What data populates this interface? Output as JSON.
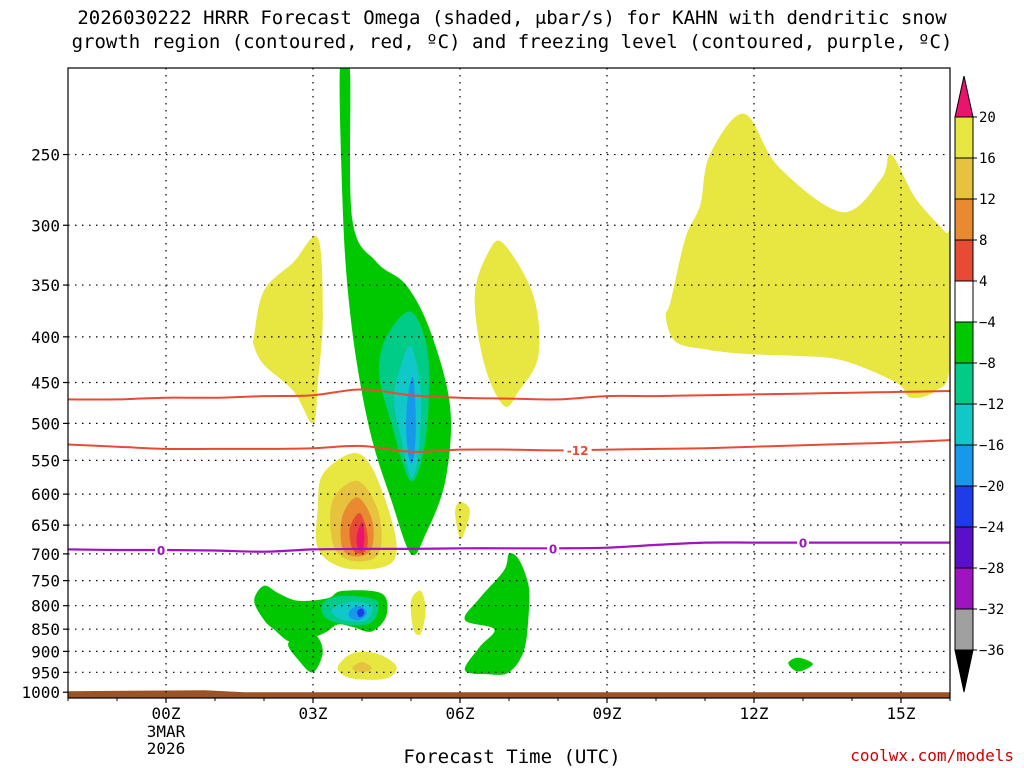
{
  "title": {
    "line1": "2026030222 HRRR Forecast Omega (shaded, μbar/s) for KAHN with dendritic snow",
    "line2": "growth region (contoured, red, ºC) and freezing level (contoured, purple, ºC)"
  },
  "xlabel": "Forecast Time (UTC)",
  "credit": "coolwx.com/models",
  "chart_data": {
    "type": "contour-time-height",
    "x_ticks": [
      {
        "label": "00Z",
        "sub": [
          "3MAR",
          "2026"
        ],
        "hour": 0
      },
      {
        "label": "03Z",
        "hour": 3
      },
      {
        "label": "06Z",
        "hour": 6
      },
      {
        "label": "09Z",
        "hour": 9
      },
      {
        "label": "12Z",
        "hour": 12
      },
      {
        "label": "15Z",
        "hour": 15
      }
    ],
    "xlim_hours": [
      -2,
      16
    ],
    "y_ticks": [
      250,
      300,
      350,
      400,
      450,
      500,
      550,
      600,
      650,
      700,
      750,
      800,
      850,
      900,
      950,
      1000
    ],
    "ylim_hpa": [
      200,
      1015
    ],
    "y_scale": "log-pressure",
    "colorbar": {
      "labels": [
        "20",
        "16",
        "12",
        "8",
        "4",
        "−4",
        "−8",
        "−12",
        "−16",
        "−20",
        "−24",
        "−28",
        "−32",
        "−36"
      ],
      "colors": [
        "#e8e640",
        "#e6c23e",
        "#ea8a30",
        "#e84b35",
        "#ffffff",
        "#00c800",
        "#00cc88",
        "#10c8c8",
        "#1898ec",
        "#1e3ce8",
        "#5a10c8",
        "#a014c0",
        "#a0a0a0"
      ],
      "top_color": "#e8146e",
      "bottom_color": "#000000"
    },
    "contour_labels": {
      "dendritic": "-12",
      "freezing": "0"
    },
    "contour_colors": {
      "dendritic": "#e84b35",
      "freezing": "#a014c0"
    },
    "dendritic_upper": [
      [
        -2,
        470
      ],
      [
        -1,
        470
      ],
      [
        0,
        468
      ],
      [
        1,
        468
      ],
      [
        2,
        466
      ],
      [
        3,
        465
      ],
      [
        4,
        458
      ],
      [
        5,
        465
      ],
      [
        6,
        468
      ],
      [
        7,
        469
      ],
      [
        8,
        470
      ],
      [
        9,
        466
      ],
      [
        10,
        466
      ],
      [
        11,
        465
      ],
      [
        12,
        464
      ],
      [
        13,
        463
      ],
      [
        14,
        462
      ],
      [
        15,
        461
      ],
      [
        16,
        460
      ]
    ],
    "dendritic_lower": [
      [
        -2,
        528
      ],
      [
        -1,
        531
      ],
      [
        0,
        534
      ],
      [
        1,
        534
      ],
      [
        2,
        534
      ],
      [
        3,
        533
      ],
      [
        4,
        530
      ],
      [
        5,
        538
      ],
      [
        6,
        535
      ],
      [
        7,
        535
      ],
      [
        8,
        536
      ],
      [
        9,
        535
      ],
      [
        10,
        534
      ],
      [
        11,
        533
      ],
      [
        12,
        531
      ],
      [
        13,
        529
      ],
      [
        14,
        527
      ],
      [
        15,
        525
      ],
      [
        16,
        522
      ]
    ],
    "freezing_level": [
      [
        -2,
        692
      ],
      [
        -1,
        693
      ],
      [
        0,
        693
      ],
      [
        1,
        694
      ],
      [
        2,
        696
      ],
      [
        3,
        692
      ],
      [
        4,
        691
      ],
      [
        5,
        691
      ],
      [
        6,
        690
      ],
      [
        7,
        690
      ],
      [
        8,
        690
      ],
      [
        9,
        689
      ],
      [
        10,
        684
      ],
      [
        11,
        680
      ],
      [
        12,
        680
      ],
      [
        13,
        680
      ],
      [
        14,
        680
      ],
      [
        15,
        680
      ],
      [
        16,
        680
      ]
    ],
    "omega_regions": [
      {
        "level": "+4",
        "color": "#e8e640",
        "pts": [
          [
            1.8,
            398
          ],
          [
            2,
            355
          ],
          [
            2.6,
            330
          ],
          [
            3.1,
            310
          ],
          [
            3.2,
            380
          ],
          [
            3.1,
            450
          ],
          [
            3,
            500
          ],
          [
            2.6,
            460
          ],
          [
            2,
            430
          ],
          [
            1.8,
            410
          ]
        ]
      },
      {
        "level": "+4",
        "color": "#e8e640",
        "pts": [
          [
            6.9,
            315
          ],
          [
            7.5,
            360
          ],
          [
            7.6,
            420
          ],
          [
            7.2,
            460
          ],
          [
            6.9,
            478
          ],
          [
            6.5,
            430
          ],
          [
            6.3,
            360
          ],
          [
            6.6,
            320
          ]
        ]
      },
      {
        "level": "+4",
        "color": "#e8e640",
        "pts": [
          [
            10.3,
            365
          ],
          [
            10.6,
            310
          ],
          [
            10.9,
            285
          ],
          [
            11.1,
            250
          ],
          [
            11.8,
            225
          ],
          [
            12.5,
            258
          ],
          [
            13.8,
            290
          ],
          [
            14.6,
            266
          ],
          [
            14.8,
            250
          ],
          [
            15.3,
            280
          ],
          [
            15.9,
            305
          ],
          [
            16,
            310
          ],
          [
            16,
            430
          ],
          [
            15.7,
            460
          ],
          [
            15.2,
            468
          ],
          [
            14.9,
            450
          ],
          [
            13.8,
            425
          ],
          [
            12.8,
            420
          ],
          [
            11.8,
            418
          ],
          [
            11,
            413
          ],
          [
            10.4,
            405
          ],
          [
            10.2,
            380
          ]
        ]
      },
      {
        "level": "+4",
        "color": "#e8e640",
        "pts": [
          [
            3.2,
            570
          ],
          [
            3.8,
            540
          ],
          [
            4.2,
            560
          ],
          [
            4.6,
            640
          ],
          [
            4.7,
            700
          ],
          [
            4.4,
            725
          ],
          [
            3.6,
            725
          ],
          [
            3.1,
            690
          ],
          [
            3.1,
            620
          ]
        ]
      },
      {
        "level": "+8",
        "color": "#e6c23e",
        "pts": [
          [
            3.4,
            610
          ],
          [
            3.9,
            580
          ],
          [
            4.3,
            620
          ],
          [
            4.4,
            680
          ],
          [
            4.2,
            710
          ],
          [
            3.7,
            710
          ],
          [
            3.4,
            680
          ]
        ]
      },
      {
        "level": "+12",
        "color": "#ea8a30",
        "pts": [
          [
            3.6,
            635
          ],
          [
            3.9,
            605
          ],
          [
            4.2,
            640
          ],
          [
            4.2,
            690
          ],
          [
            3.9,
            705
          ],
          [
            3.6,
            690
          ]
        ]
      },
      {
        "level": "+16",
        "color": "#e84b35",
        "pts": [
          [
            3.75,
            655
          ],
          [
            3.95,
            630
          ],
          [
            4.1,
            660
          ],
          [
            4.1,
            690
          ],
          [
            3.95,
            700
          ],
          [
            3.8,
            690
          ]
        ]
      },
      {
        "level": "+20",
        "color": "#e8146e",
        "pts": [
          [
            3.9,
            665
          ],
          [
            4,
            645
          ],
          [
            4.05,
            670
          ],
          [
            4.0,
            695
          ],
          [
            3.9,
            685
          ]
        ]
      },
      {
        "level": "+4",
        "color": "#e8e640",
        "pts": [
          [
            5.9,
            630
          ],
          [
            6.0,
            612
          ],
          [
            6.2,
            625
          ],
          [
            6.1,
            660
          ],
          [
            6.0,
            672
          ]
        ]
      },
      {
        "level": "+4",
        "color": "#e8e640",
        "pts": [
          [
            5.0,
            790
          ],
          [
            5.2,
            770
          ],
          [
            5.3,
            810
          ],
          [
            5.2,
            860
          ],
          [
            5.05,
            850
          ]
        ]
      },
      {
        "level": "+4",
        "color": "#e8e640",
        "pts": [
          [
            3.5,
            940
          ],
          [
            3.8,
            905
          ],
          [
            4.3,
            905
          ],
          [
            4.7,
            935
          ],
          [
            4.5,
            965
          ],
          [
            3.8,
            965
          ]
        ]
      },
      {
        "level": "+8",
        "color": "#e6c23e",
        "pts": [
          [
            3.8,
            940
          ],
          [
            4.0,
            925
          ],
          [
            4.2,
            940
          ],
          [
            4.0,
            950
          ]
        ]
      },
      {
        "level": "-4",
        "color": "#00c800",
        "pts": [
          [
            3.55,
            200
          ],
          [
            3.75,
            200
          ],
          [
            3.8,
            295
          ],
          [
            4.3,
            330
          ],
          [
            4.9,
            350
          ],
          [
            5.4,
            395
          ],
          [
            5.8,
            480
          ],
          [
            5.7,
            580
          ],
          [
            5.3,
            665
          ],
          [
            5.0,
            700
          ],
          [
            4.6,
            610
          ],
          [
            4.2,
            520
          ],
          [
            3.9,
            430
          ],
          [
            3.7,
            350
          ],
          [
            3.6,
            280
          ]
        ]
      },
      {
        "level": "-8",
        "color": "#00cc88",
        "pts": [
          [
            4.5,
            400
          ],
          [
            5.0,
            375
          ],
          [
            5.35,
            420
          ],
          [
            5.3,
            520
          ],
          [
            5.0,
            580
          ],
          [
            4.6,
            500
          ],
          [
            4.35,
            440
          ]
        ]
      },
      {
        "level": "-12",
        "color": "#10c8c8",
        "pts": [
          [
            4.8,
            430
          ],
          [
            5.0,
            410
          ],
          [
            5.2,
            460
          ],
          [
            5.15,
            540
          ],
          [
            5.0,
            575
          ],
          [
            4.8,
            520
          ],
          [
            4.65,
            470
          ]
        ]
      },
      {
        "level": "-16",
        "color": "#1898ec",
        "pts": [
          [
            4.95,
            460
          ],
          [
            5.05,
            445
          ],
          [
            5.1,
            500
          ],
          [
            5.05,
            550
          ],
          [
            4.95,
            545
          ],
          [
            4.9,
            500
          ]
        ]
      },
      {
        "level": "-4",
        "color": "#00c800",
        "pts": [
          [
            1.8,
            790
          ],
          [
            2.0,
            760
          ],
          [
            2.3,
            775
          ],
          [
            2.7,
            790
          ],
          [
            3.3,
            785
          ],
          [
            3.6,
            770
          ],
          [
            4.4,
            775
          ],
          [
            4.5,
            820
          ],
          [
            4.2,
            855
          ],
          [
            3.8,
            845
          ],
          [
            3.5,
            840
          ],
          [
            3.2,
            860
          ],
          [
            2.6,
            880
          ],
          [
            2.2,
            850
          ],
          [
            2.0,
            830
          ]
        ]
      },
      {
        "level": "-4",
        "color": "#00c800",
        "pts": [
          [
            2.5,
            880
          ],
          [
            3.0,
            860
          ],
          [
            3.2,
            900
          ],
          [
            3.0,
            950
          ],
          [
            2.7,
            920
          ]
        ]
      },
      {
        "level": "-8",
        "color": "#00cc88",
        "pts": [
          [
            3.2,
            795
          ],
          [
            3.6,
            780
          ],
          [
            4.3,
            790
          ],
          [
            4.2,
            835
          ],
          [
            3.7,
            840
          ],
          [
            3.25,
            825
          ]
        ]
      },
      {
        "level": "-12",
        "color": "#10c8c8",
        "pts": [
          [
            3.4,
            805
          ],
          [
            3.8,
            792
          ],
          [
            4.2,
            800
          ],
          [
            4.1,
            830
          ],
          [
            3.7,
            832
          ],
          [
            3.45,
            822
          ]
        ]
      },
      {
        "level": "-16",
        "color": "#1898ec",
        "pts": [
          [
            3.75,
            810
          ],
          [
            3.95,
            800
          ],
          [
            4.1,
            815
          ],
          [
            3.95,
            830
          ],
          [
            3.75,
            825
          ]
        ]
      },
      {
        "level": "-24",
        "color": "#1e3ce8",
        "pts": [
          [
            3.9,
            812
          ],
          [
            4.0,
            806
          ],
          [
            4.05,
            817
          ],
          [
            3.95,
            824
          ]
        ]
      },
      {
        "level": "-4",
        "color": "#00c800",
        "pts": [
          [
            6.1,
            830
          ],
          [
            6.4,
            785
          ],
          [
            6.9,
            730
          ],
          [
            7.0,
            700
          ],
          [
            7.2,
            710
          ],
          [
            7.4,
            760
          ],
          [
            7.4,
            820
          ],
          [
            7.3,
            900
          ],
          [
            7.0,
            950
          ],
          [
            6.6,
            955
          ],
          [
            6.1,
            945
          ],
          [
            6.4,
            890
          ],
          [
            6.7,
            850
          ]
        ]
      },
      {
        "level": "-4",
        "color": "#00c800",
        "pts": [
          [
            12.7,
            928
          ],
          [
            12.9,
            915
          ],
          [
            13.2,
            930
          ],
          [
            12.9,
            948
          ]
        ]
      }
    ],
    "surface_fill": {
      "color": "#9b5225",
      "from_hpa": 1000
    }
  }
}
